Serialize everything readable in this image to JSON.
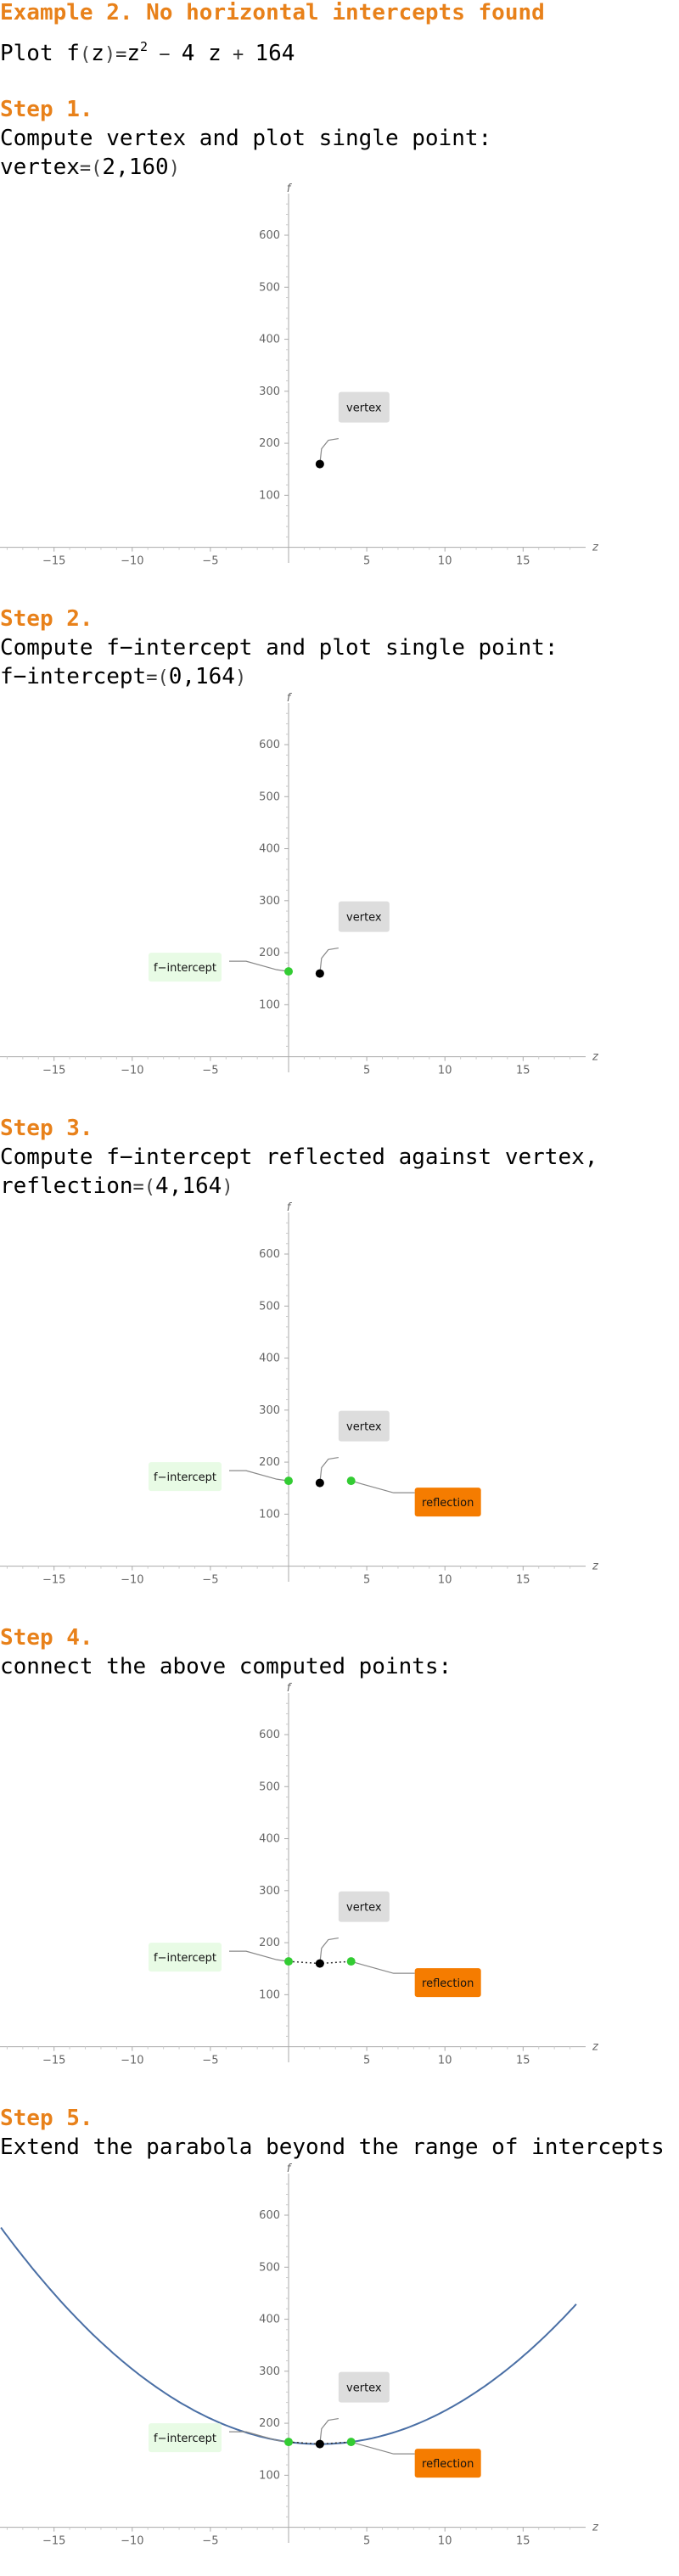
{
  "heading": "Example 2. No horizontal intercepts found",
  "plot_line": {
    "prefix": "Plot ",
    "fname": "f",
    "var": "z",
    "eq": "=",
    "term1_base": "z",
    "term1_exp": "2",
    "op1": "−",
    "term2": "4 z",
    "op2": "+",
    "term3": "164"
  },
  "steps": [
    {
      "label": "Step 1.",
      "text_main": "Compute vertex and plot single point:",
      "text_second_name": "vertex",
      "text_second_value": "2,160"
    },
    {
      "label": "Step 2.",
      "text_main": "Compute f−intercept and plot single point:",
      "text_second_name": "f−intercept",
      "text_second_value": "0,164"
    },
    {
      "label": "Step 3.",
      "text_main": "Compute f−intercept reflected against vertex,",
      "text_second_name": "reflection",
      "text_second_value": "4,164"
    },
    {
      "label": "Step 4.",
      "text_main": "connect the above computed points:"
    },
    {
      "label": "Step 5.",
      "text_main": "Extend the parabola beyond the range of intercepts"
    }
  ],
  "colors": {
    "accent": "#e8811a",
    "curve": "#4a6fa5",
    "intercept_point": "#33cc33",
    "vertex_point": "#000000",
    "vertex_label_bg": "#dddddd",
    "intercept_label_bg": "#e8fbe5",
    "reflection_label_bg": "#f57c00"
  },
  "chart_data": [
    {
      "type": "scatter",
      "xlabel": "z",
      "ylabel": "f",
      "xlim": [
        -19,
        19
      ],
      "ylim": [
        -30,
        680
      ],
      "xticks": [
        -15,
        -10,
        -5,
        5,
        10,
        15
      ],
      "yticks": [
        100,
        200,
        300,
        400,
        500,
        600
      ],
      "points": [
        {
          "x": 2,
          "y": 160,
          "label": "vertex",
          "color": "#000000"
        }
      ],
      "show_line": false,
      "show_curve": false
    },
    {
      "type": "scatter",
      "xlabel": "z",
      "ylabel": "f",
      "xlim": [
        -19,
        19
      ],
      "ylim": [
        -30,
        680
      ],
      "xticks": [
        -15,
        -10,
        -5,
        5,
        10,
        15
      ],
      "yticks": [
        100,
        200,
        300,
        400,
        500,
        600
      ],
      "points": [
        {
          "x": 0,
          "y": 164,
          "label": "f−intercept",
          "color": "#33cc33"
        },
        {
          "x": 2,
          "y": 160,
          "label": "vertex",
          "color": "#000000"
        }
      ],
      "show_line": false,
      "show_curve": false
    },
    {
      "type": "scatter",
      "xlabel": "z",
      "ylabel": "f",
      "xlim": [
        -19,
        19
      ],
      "ylim": [
        -30,
        680
      ],
      "xticks": [
        -15,
        -10,
        -5,
        5,
        10,
        15
      ],
      "yticks": [
        100,
        200,
        300,
        400,
        500,
        600
      ],
      "points": [
        {
          "x": 0,
          "y": 164,
          "label": "f−intercept",
          "color": "#33cc33"
        },
        {
          "x": 2,
          "y": 160,
          "label": "vertex",
          "color": "#000000"
        },
        {
          "x": 4,
          "y": 164,
          "label": "reflection",
          "color": "#33cc33"
        }
      ],
      "show_line": false,
      "show_curve": false
    },
    {
      "type": "line",
      "xlabel": "z",
      "ylabel": "f",
      "xlim": [
        -19,
        19
      ],
      "ylim": [
        -30,
        680
      ],
      "xticks": [
        -15,
        -10,
        -5,
        5,
        10,
        15
      ],
      "yticks": [
        100,
        200,
        300,
        400,
        500,
        600
      ],
      "points": [
        {
          "x": 0,
          "y": 164,
          "label": "f−intercept",
          "color": "#33cc33"
        },
        {
          "x": 2,
          "y": 160,
          "label": "vertex",
          "color": "#000000"
        },
        {
          "x": 4,
          "y": 164,
          "label": "reflection",
          "color": "#33cc33"
        }
      ],
      "show_line": true,
      "show_curve": false
    },
    {
      "type": "line",
      "xlabel": "z",
      "ylabel": "f",
      "xlim": [
        -19,
        19
      ],
      "ylim": [
        -30,
        680
      ],
      "xticks": [
        -15,
        -10,
        -5,
        5,
        10,
        15
      ],
      "yticks": [
        100,
        200,
        300,
        400,
        500,
        600
      ],
      "points": [
        {
          "x": 0,
          "y": 164,
          "label": "f−intercept",
          "color": "#33cc33"
        },
        {
          "x": 2,
          "y": 160,
          "label": "vertex",
          "color": "#000000"
        },
        {
          "x": 4,
          "y": 164,
          "label": "reflection",
          "color": "#33cc33"
        }
      ],
      "curve": {
        "a": 1,
        "b": -4,
        "c": 164,
        "x_range": [
          -19,
          19
        ]
      },
      "show_line": true,
      "show_curve": true
    }
  ]
}
